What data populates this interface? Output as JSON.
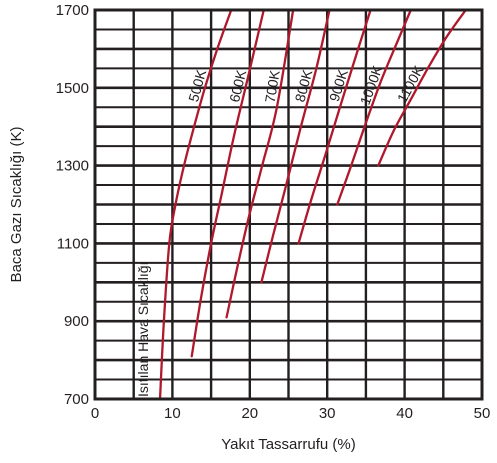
{
  "chart_data": {
    "type": "line",
    "xlabel": "Yakıt Tassarrufu (%)",
    "ylabel": "Baca Gazı Sıcaklığı (K)",
    "xlim": [
      0,
      50
    ],
    "ylim": [
      700,
      1700
    ],
    "x_ticks": [
      "0",
      "10",
      "20",
      "30",
      "40",
      "50"
    ],
    "y_ticks": [
      "700",
      "900",
      "1100",
      "1300",
      "1500",
      "1700"
    ],
    "grid": true,
    "line_color": "#b0182c",
    "annotation": "Isıtılan Hava Sıcaklığı",
    "series": [
      {
        "name": "500K",
        "x": [
          8.4,
          8.9,
          9.6,
          10.4,
          11.5,
          12.8,
          14.2,
          15.8,
          17.6
        ],
        "y": [
          700,
          900,
          1100,
          1200,
          1300,
          1400,
          1500,
          1600,
          1700
        ]
      },
      {
        "name": "600K",
        "x": [
          12.5,
          13.7,
          15.0,
          16.4,
          18.0,
          19.8,
          21.8
        ],
        "y": [
          810,
          960,
          1100,
          1230,
          1380,
          1530,
          1700
        ]
      },
      {
        "name": "700K",
        "x": [
          17.0,
          18.4,
          19.9,
          21.6,
          23.5,
          25.6
        ],
        "y": [
          910,
          1040,
          1170,
          1300,
          1450,
          1700
        ]
      },
      {
        "name": "800K",
        "x": [
          21.5,
          23.0,
          24.7,
          26.6,
          28.6,
          30.3
        ],
        "y": [
          1000,
          1120,
          1250,
          1400,
          1550,
          1700
        ]
      },
      {
        "name": "900K",
        "x": [
          26.3,
          27.9,
          29.8,
          31.8,
          34.0,
          35.6
        ],
        "y": [
          1100,
          1210,
          1330,
          1460,
          1600,
          1700
        ]
      },
      {
        "name": "1000K",
        "x": [
          31.3,
          33.1,
          35.0,
          37.0,
          39.1,
          40.8
        ],
        "y": [
          1200,
          1300,
          1410,
          1520,
          1620,
          1700
        ]
      },
      {
        "name": "1100K",
        "x": [
          36.6,
          38.6,
          40.8,
          43.0,
          45.4,
          47.9
        ],
        "y": [
          1300,
          1390,
          1470,
          1550,
          1630,
          1700
        ]
      }
    ]
  }
}
